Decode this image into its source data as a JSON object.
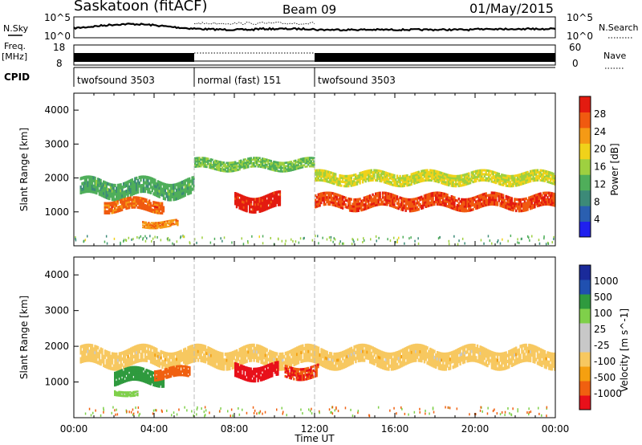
{
  "header": {
    "station": "Saskatoon (fitACF)",
    "beam": "Beam 09",
    "date": "01/May/2015"
  },
  "left_labels": {
    "nsky": "N.Sky",
    "freq": "Freq.",
    "freq_unit": "[MHz]",
    "cpid": "CPID"
  },
  "right_labels": {
    "nsearch": "N.Search",
    "nave": "Nave"
  },
  "noise_axis": {
    "top": "10^5",
    "bottom": "10^0"
  },
  "freq_axis": {
    "left_top": "18",
    "left_bottom": "8",
    "right_top": "60",
    "right_bottom": "0"
  },
  "cpid_segments": [
    {
      "label": "twofsound 3503",
      "start": 0,
      "end": 6
    },
    {
      "label": "normal (fast) 151",
      "start": 6,
      "end": 12
    },
    {
      "label": "twofsound 3503",
      "start": 12,
      "end": 24
    }
  ],
  "colors": {
    "power": [
      "#2020ee",
      "#2a5fb0",
      "#3c8a78",
      "#4fae5a",
      "#9ed040",
      "#f0d21a",
      "#f59a15",
      "#f05a10",
      "#e31b10"
    ],
    "velocity": [
      "#e8101a",
      "#f06010",
      "#f5a010",
      "#f7c860",
      "#c8c8c8",
      "#c8c8c8",
      "#7fd04a",
      "#2f9a3e",
      "#2050b0",
      "#1a2a9a"
    ]
  },
  "chart_data": [
    {
      "type": "heatmap",
      "title": "Power",
      "xlabel": "Time UT",
      "ylabel": "Slant Range [km]",
      "x_ticks": [
        "00:00",
        "04:00",
        "08:00",
        "12:00",
        "16:00",
        "20:00",
        "00:00"
      ],
      "xlim": [
        0,
        24
      ],
      "ylim": [
        0,
        4500
      ],
      "y_ticks": [
        1000,
        2000,
        3000,
        4000
      ],
      "colorbar": {
        "label": "Power [dB]",
        "ticks": [
          4,
          8,
          12,
          16,
          20,
          24,
          28
        ],
        "range": [
          0,
          32
        ]
      },
      "bands": [
        {
          "t0": 0.3,
          "t1": 6,
          "center": 1700,
          "width": 500,
          "value": 12
        },
        {
          "t0": 1.5,
          "t1": 4.5,
          "center": 1200,
          "width": 350,
          "value": 26
        },
        {
          "t0": 3.4,
          "t1": 5.2,
          "center": 650,
          "width": 200,
          "value": 24
        },
        {
          "t0": 8.0,
          "t1": 10.3,
          "center": 1300,
          "width": 450,
          "value": 30
        },
        {
          "t0": 12.0,
          "t1": 24,
          "center": 1300,
          "width": 400,
          "value": 28
        },
        {
          "t0": 12.0,
          "t1": 24,
          "center": 2000,
          "width": 350,
          "value": 18
        },
        {
          "t0": 6.0,
          "t1": 12,
          "center": 2400,
          "width": 300,
          "value": 14
        }
      ]
    },
    {
      "type": "heatmap",
      "title": "Velocity",
      "xlabel": "Time UT",
      "ylabel": "Slant Range [km]",
      "x_ticks": [
        "00:00",
        "04:00",
        "08:00",
        "12:00",
        "16:00",
        "20:00",
        "00:00"
      ],
      "xlim": [
        0,
        24
      ],
      "ylim": [
        0,
        4500
      ],
      "y_ticks": [
        1000,
        2000,
        3000,
        4000
      ],
      "colorbar": {
        "label": "Velocity [m s^-1]",
        "ticks": [
          1000,
          500,
          100,
          25,
          -25,
          -100,
          -500,
          -1000
        ]
      },
      "bands": [
        {
          "t0": 0.3,
          "t1": 24,
          "center": 1700,
          "width": 500,
          "value": 0
        },
        {
          "t0": 2.0,
          "t1": 4.5,
          "center": 1150,
          "width": 400,
          "value": 800
        },
        {
          "t0": 4.0,
          "t1": 5.8,
          "center": 1250,
          "width": 300,
          "value": -400
        },
        {
          "t0": 8.0,
          "t1": 10.2,
          "center": 1300,
          "width": 400,
          "value": -600
        },
        {
          "t0": 10.5,
          "t1": 12.2,
          "center": 1300,
          "width": 350,
          "value": -500
        },
        {
          "t0": 2.0,
          "t1": 3.2,
          "center": 700,
          "width": 150,
          "value": 120
        }
      ]
    }
  ]
}
